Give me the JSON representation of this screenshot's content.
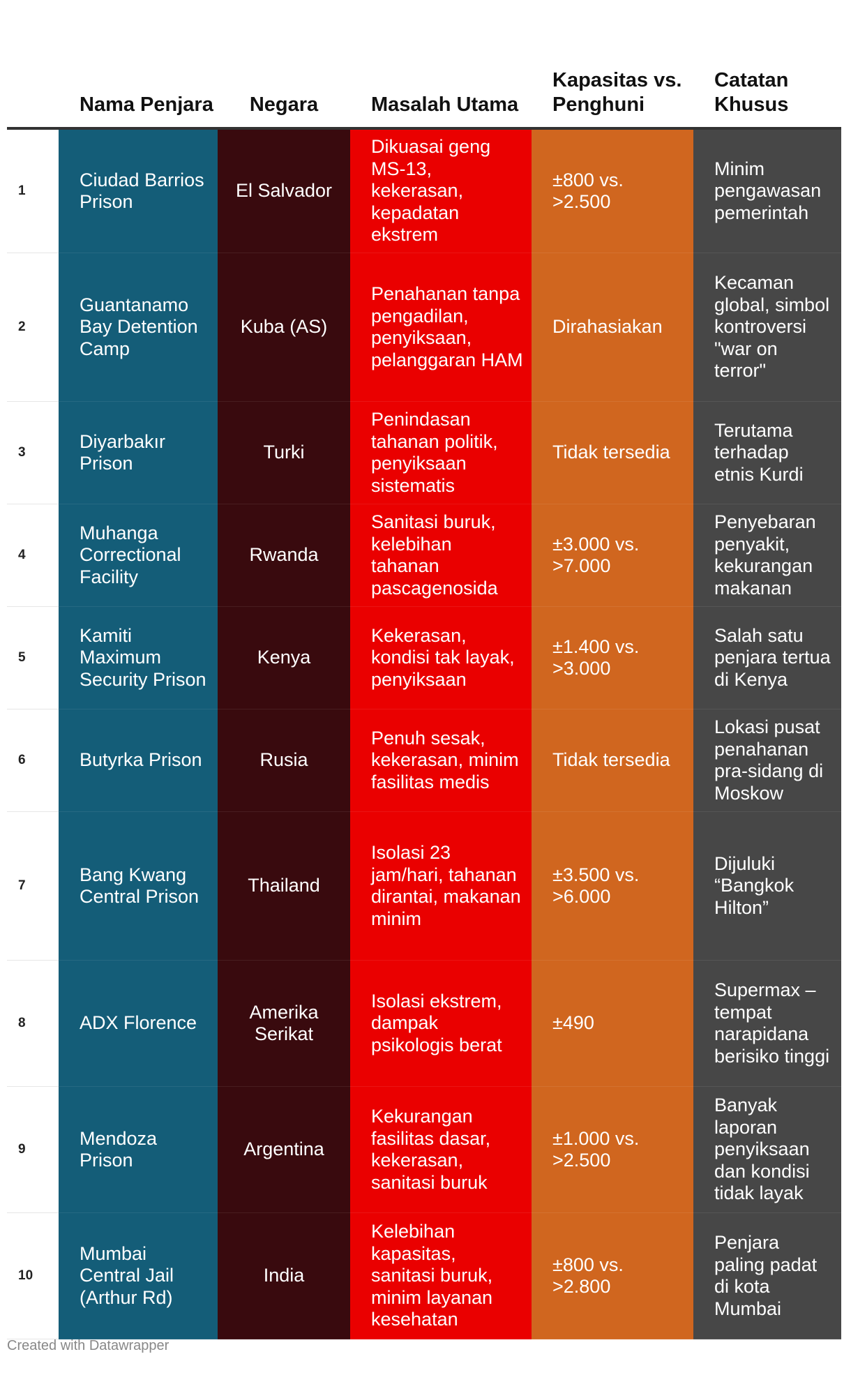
{
  "chart_data": {
    "type": "table",
    "colors": {
      "nama": "#145d78",
      "negara": "#390a0e",
      "masalah": "#ea0000",
      "kapasitas": "#d0661f",
      "catatan": "#474747"
    },
    "columns": [
      "",
      "Nama Penjara",
      "Negara",
      "Masalah Utama",
      "Kapasitas vs. Penghuni",
      "Catatan Khusus"
    ],
    "rows": [
      {
        "rank": "1",
        "nama": "Ciudad Barrios Prison",
        "negara": "El Salvador",
        "masalah": "Dikuasai geng MS-13, kekerasan, kepadatan ekstrem",
        "kapasitas": "±800 vs. >2.500",
        "catatan": "Minim pengawasan pemerintah"
      },
      {
        "rank": "2",
        "nama": "Guantanamo Bay Detention Camp",
        "negara": "Kuba (AS)",
        "masalah": "Penahanan tanpa pengadilan, penyiksaan, pelanggaran HAM",
        "kapasitas": "Dirahasiakan",
        "catatan": "Kecaman global, simbol kontroversi \"war on terror\""
      },
      {
        "rank": "3",
        "nama": "Diyarbakır Prison",
        "negara": "Turki",
        "masalah": "Penindasan tahanan politik, penyiksaan sistematis",
        "kapasitas": "Tidak tersedia",
        "catatan": "Terutama terhadap etnis Kurdi"
      },
      {
        "rank": "4",
        "nama": "Muhanga Correctional Facility",
        "negara": "Rwanda",
        "masalah": "Sanitasi buruk, kelebihan tahanan pascagenosida",
        "kapasitas": "±3.000 vs. >7.000",
        "catatan": "Penyebaran penyakit, kekurangan makanan"
      },
      {
        "rank": "5",
        "nama": "Kamiti Maximum Security Prison",
        "negara": "Kenya",
        "masalah": "Kekerasan, kondisi tak layak, penyiksaan",
        "kapasitas": "±1.400 vs. >3.000",
        "catatan": "Salah satu penjara tertua di Kenya"
      },
      {
        "rank": "6",
        "nama": "Butyrka Prison",
        "negara": "Rusia",
        "masalah": "Penuh sesak, kekerasan, minim fasilitas medis",
        "kapasitas": "Tidak tersedia",
        "catatan": "Lokasi pusat penahanan pra-sidang di Moskow"
      },
      {
        "rank": "7",
        "nama": "Bang Kwang Central Prison",
        "negara": "Thailand",
        "masalah": "Isolasi 23 jam/hari, tahanan dirantai, makanan minim",
        "kapasitas": "±3.500 vs. >6.000",
        "catatan": "Dijuluki “Bangkok Hilton”"
      },
      {
        "rank": "8",
        "nama": "ADX Florence",
        "negara": "Amerika Serikat",
        "masalah": "Isolasi ekstrem, dampak psikologis berat",
        "kapasitas": "±490",
        "catatan": "Supermax – tempat narapidana berisiko tinggi"
      },
      {
        "rank": "9",
        "nama": "Mendoza Prison",
        "negara": "Argentina",
        "masalah": "Kekurangan fasilitas dasar, kekerasan, sanitasi buruk",
        "kapasitas": "±1.000 vs. >2.500",
        "catatan": "Banyak laporan penyiksaan dan kondisi tidak layak"
      },
      {
        "rank": "10",
        "nama": "Mumbai Central Jail (Arthur Rd)",
        "negara": "India",
        "masalah": "Kelebihan kapasitas, sanitasi buruk, minim layanan kesehatan",
        "kapasitas": "±800 vs. >2.800",
        "catatan": "Penjara paling padat di kota Mumbai"
      }
    ]
  },
  "footer": "Created with Datawrapper"
}
